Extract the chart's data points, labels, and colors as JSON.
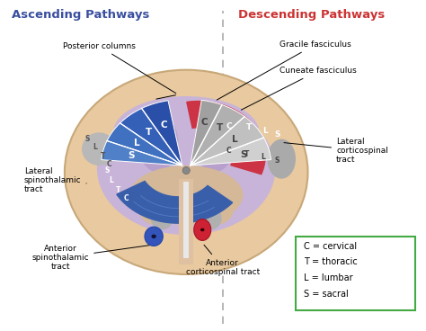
{
  "title_left": "Ascending Pathways",
  "title_right": "Descending Pathways",
  "title_left_color": "#3a4fa0",
  "title_right_color": "#cc3333",
  "background_color": "#ffffff",
  "legend_text": [
    "C = cervical",
    "T = thoracic",
    "L = lumbar",
    "S = sacral"
  ],
  "outer_color": "#e8c9a0",
  "outer_edge_color": "#c8a878",
  "inner_color": "#c8b4d8",
  "gray_fan_colors": [
    "#c8c8c8",
    "#b8b8b8",
    "#a8a8a8",
    "#989898"
  ],
  "blue_fan_color": "#3a5faa",
  "blue_tract_color": "#3a5faa",
  "red_tract_color": "#cc3344",
  "ant_blue_color": "#3355bb",
  "ant_red_color": "#cc3333"
}
